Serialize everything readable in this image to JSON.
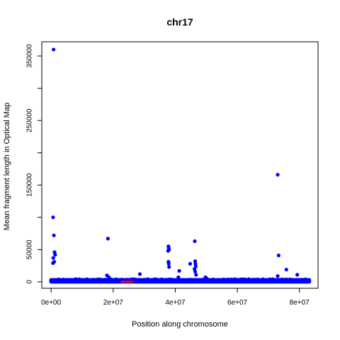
{
  "chart_data": {
    "type": "scatter",
    "title": "chr17",
    "xlabel": "Position along chromosome",
    "ylabel": "Mean fragment length in Optical Map",
    "xlim": [
      -3000000,
      86000000
    ],
    "ylim": [
      -10000,
      372000
    ],
    "x_ticks": [
      0,
      20000000,
      40000000,
      60000000,
      80000000
    ],
    "x_tick_labels": [
      "0e+00",
      "2e+07",
      "4e+07",
      "6e+07",
      "8e+07"
    ],
    "y_ticks": [
      0,
      50000,
      150000,
      250000,
      350000
    ],
    "y_tick_labels": [
      "0",
      "50000",
      "150000",
      "250000",
      "350000"
    ],
    "y_minor_ticks": [
      100000,
      200000,
      300000
    ],
    "grid": false,
    "legend": "none",
    "colors": {
      "points": "#0000ff",
      "segment": "#ff0000",
      "frame": "#000000"
    },
    "series": [
      {
        "marker": "circle",
        "color": "#0000ff",
        "points": [
          [
            800000,
            360000
          ],
          [
            650000,
            100000
          ],
          [
            900000,
            72000
          ],
          [
            1100000,
            46000
          ],
          [
            1300000,
            42000
          ],
          [
            700000,
            37000
          ],
          [
            1000000,
            31000
          ],
          [
            600000,
            29000
          ],
          [
            18300000,
            67000
          ],
          [
            18000000,
            10000
          ],
          [
            18600000,
            7000
          ],
          [
            19200000,
            4000
          ],
          [
            20000000,
            3000
          ],
          [
            28600000,
            12000
          ],
          [
            37800000,
            55000
          ],
          [
            37900000,
            52000
          ],
          [
            38000000,
            50000
          ],
          [
            37700000,
            48000
          ],
          [
            37800000,
            31000
          ],
          [
            37900000,
            28000
          ],
          [
            38000000,
            23000
          ],
          [
            41300000,
            17000
          ],
          [
            41000000,
            7000
          ],
          [
            44800000,
            28000
          ],
          [
            46300000,
            63000
          ],
          [
            46400000,
            32000
          ],
          [
            46500000,
            28000
          ],
          [
            46600000,
            24000
          ],
          [
            46200000,
            20000
          ],
          [
            46400000,
            16000
          ],
          [
            46700000,
            11000
          ],
          [
            49700000,
            7000
          ],
          [
            50000000,
            6000
          ],
          [
            70500000,
            4000
          ],
          [
            73000000,
            166000
          ],
          [
            73300000,
            41000
          ],
          [
            73000000,
            9000
          ],
          [
            75800000,
            19000
          ],
          [
            76100000,
            3500
          ],
          [
            79300000,
            11000
          ],
          [
            79800000,
            3000
          ]
        ]
      }
    ],
    "dense_baseline": {
      "x_range": [
        0,
        83200000
      ],
      "y_max": 3000,
      "color": "#0000ff"
    },
    "segments": [
      {
        "x_range": [
          22500000,
          26500000
        ],
        "y": 0,
        "color": "#ff0000"
      }
    ]
  }
}
